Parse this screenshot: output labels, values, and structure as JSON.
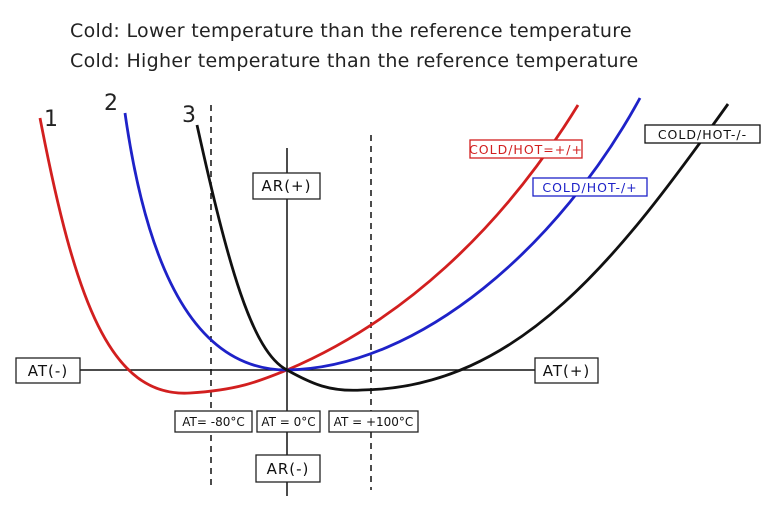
{
  "header": {
    "lines": [
      "Cold: Lower temperature than the reference temperature",
      "Cold: Higher temperature than the reference temperature"
    ]
  },
  "curve_numbers": [
    "1",
    "2",
    "3"
  ],
  "axis_labels": {
    "x_negative": "AT(-)",
    "x_positive": "AT(+)",
    "y_positive": "AR(+)",
    "y_negative": "AR(-)"
  },
  "markers": [
    "AT= -80°C",
    "AT = 0°C",
    "AT = +100°C"
  ],
  "curve_labels": [
    "COLD/HOT=+/+",
    "COLD/HOT-/+",
    "COLD/HOT-/-"
  ]
}
